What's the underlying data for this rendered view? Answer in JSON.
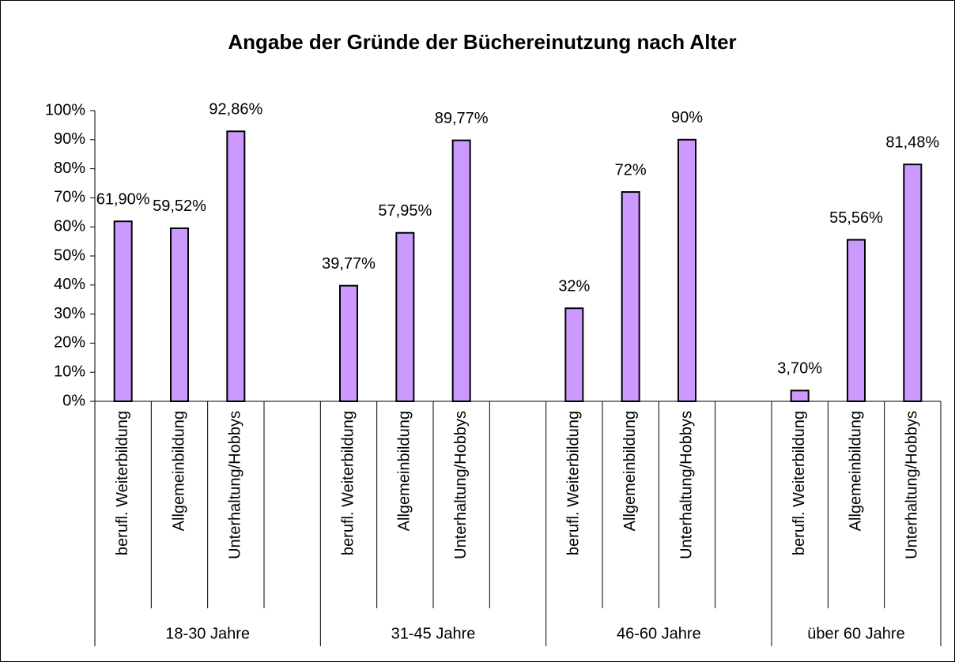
{
  "chart_data": {
    "type": "bar",
    "title": "Angabe der Gründe der Büchereinutzung nach Alter",
    "categories": [
      "berufl. Weiterbildung",
      "Allgemeinbildung",
      "Unterhaltung/Hobbys",
      null,
      "berufl. Weiterbildung",
      "Allgemeinbildung",
      "Unterhaltung/Hobbys",
      null,
      "berufl. Weiterbildung",
      "Allgemeinbildung",
      "Unterhaltung/Hobbys",
      null,
      "berufl. Weiterbildung",
      "Allgemeinbildung",
      "Unterhaltung/Hobbys"
    ],
    "groups": [
      "18-30 Jahre",
      "31-45 Jahre",
      "46-60 Jahre",
      "über 60 Jahre"
    ],
    "values": [
      61.9,
      59.52,
      92.86,
      null,
      39.77,
      57.95,
      89.77,
      null,
      32,
      72,
      90,
      null,
      3.7,
      55.56,
      81.48
    ],
    "value_labels": [
      "61,90%",
      "59,52%",
      "92,86%",
      null,
      "39,77%",
      "57,95%",
      "89,77%",
      null,
      "32%",
      "72%",
      "90%",
      null,
      "3,70%",
      "55,56%",
      "81,48%"
    ],
    "color": "#cc99ff",
    "ylim": [
      0,
      100
    ],
    "yticks": [
      {
        "value": 0,
        "label": "0%"
      },
      {
        "value": 10,
        "label": "10%"
      },
      {
        "value": 20,
        "label": "20%"
      },
      {
        "value": 30,
        "label": "30%"
      },
      {
        "value": 40,
        "label": "40%"
      },
      {
        "value": 50,
        "label": "50%"
      },
      {
        "value": 60,
        "label": "60%"
      },
      {
        "value": 70,
        "label": "70%"
      },
      {
        "value": 80,
        "label": "80%"
      },
      {
        "value": 90,
        "label": "90%"
      },
      {
        "value": 100,
        "label": "100%"
      }
    ],
    "grid": false
  }
}
